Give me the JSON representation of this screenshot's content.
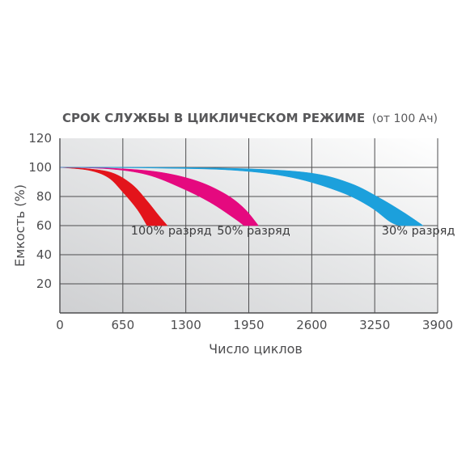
{
  "chart_data": {
    "type": "area",
    "title_bold": "СРОК СЛУЖБЫ В ЦИКЛИЧЕСКОМ РЕЖИМЕ",
    "title_note": "(от 100 Ач)",
    "xlabel": "Число циклов",
    "ylabel": "Емкость (%)",
    "xlim": [
      0,
      3900
    ],
    "ylim": [
      0,
      120
    ],
    "x_ticks": [
      0,
      650,
      1300,
      1950,
      2600,
      3250,
      3900
    ],
    "y_ticks": [
      20,
      40,
      60,
      80,
      100,
      120
    ],
    "grid": true,
    "series": [
      {
        "name": "100% разряд",
        "color": "#e3141b",
        "upper": [
          [
            0,
            100
          ],
          [
            300,
            99
          ],
          [
            550,
            96
          ],
          [
            750,
            88
          ],
          [
            900,
            77
          ],
          [
            1020,
            67
          ],
          [
            1110,
            60
          ]
        ],
        "lower": [
          [
            0,
            100
          ],
          [
            300,
            98
          ],
          [
            500,
            93
          ],
          [
            650,
            83
          ],
          [
            800,
            71
          ],
          [
            900,
            60
          ]
        ],
        "label_value": [
          1150,
          54
        ]
      },
      {
        "name": "50% разряд",
        "color": "#e5097f",
        "upper": [
          [
            0,
            100
          ],
          [
            500,
            99.5
          ],
          [
            1000,
            97
          ],
          [
            1400,
            91
          ],
          [
            1700,
            82
          ],
          [
            1900,
            72
          ],
          [
            2050,
            60
          ]
        ],
        "lower": [
          [
            0,
            100
          ],
          [
            500,
            99
          ],
          [
            900,
            95
          ],
          [
            1250,
            86
          ],
          [
            1550,
            76
          ],
          [
            1800,
            65
          ],
          [
            1900,
            60
          ]
        ],
        "label_value": [
          2000,
          54
        ]
      },
      {
        "name": "30% разряд",
        "color": "#1ca0dc",
        "upper": [
          [
            0,
            100
          ],
          [
            1000,
            100
          ],
          [
            1950,
            99
          ],
          [
            2600,
            96
          ],
          [
            3000,
            89
          ],
          [
            3300,
            79
          ],
          [
            3550,
            69
          ],
          [
            3750,
            60
          ]
        ],
        "lower": [
          [
            0,
            100
          ],
          [
            1000,
            99.5
          ],
          [
            1800,
            98
          ],
          [
            2400,
            93
          ],
          [
            2900,
            83
          ],
          [
            3200,
            73
          ],
          [
            3400,
            63
          ],
          [
            3500,
            60
          ]
        ],
        "label_value": [
          3700,
          54
        ]
      }
    ]
  }
}
